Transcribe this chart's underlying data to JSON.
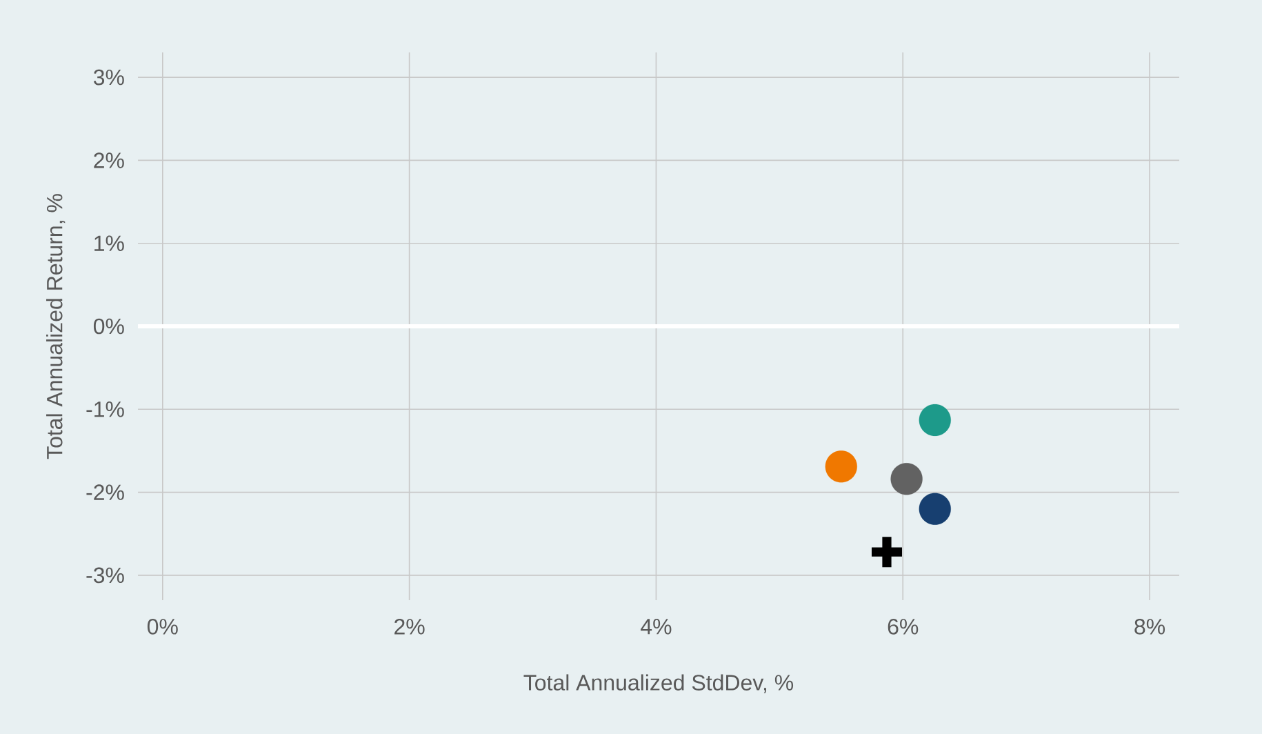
{
  "chart_data": {
    "type": "scatter",
    "xlabel": "Total Annualized StdDev, %",
    "ylabel": "Total Annualized Return, %",
    "xlim": [
      -0.2,
      8.24
    ],
    "ylim": [
      -3.3,
      3.3
    ],
    "xticks": [
      {
        "value": 0,
        "label": "0%"
      },
      {
        "value": 2,
        "label": "2%"
      },
      {
        "value": 4,
        "label": "4%"
      },
      {
        "value": 6,
        "label": "6%"
      },
      {
        "value": 8,
        "label": "8%"
      }
    ],
    "yticks": [
      {
        "value": -3,
        "label": "-3%"
      },
      {
        "value": -2,
        "label": "-2%"
      },
      {
        "value": -1,
        "label": "-1%"
      },
      {
        "value": 0,
        "label": "0%"
      },
      {
        "value": 1,
        "label": "1%"
      },
      {
        "value": 2,
        "label": "2%"
      },
      {
        "value": 3,
        "label": "3%"
      }
    ],
    "grid": true,
    "ref_lines": [
      {
        "axis": "y",
        "value": 0,
        "color": "#ffffff"
      }
    ],
    "series": [
      {
        "marker": "circle",
        "x": [
          6.26,
          5.5,
          6.03,
          6.26
        ],
        "values": [
          -1.13,
          -1.69,
          -1.84,
          -2.2
        ],
        "colors": [
          "#1d9a8a",
          "#f07800",
          "#626262",
          "#173f70"
        ]
      },
      {
        "marker": "cross",
        "x": [
          5.87
        ],
        "values": [
          -2.72
        ],
        "color": "#000000"
      }
    ]
  }
}
